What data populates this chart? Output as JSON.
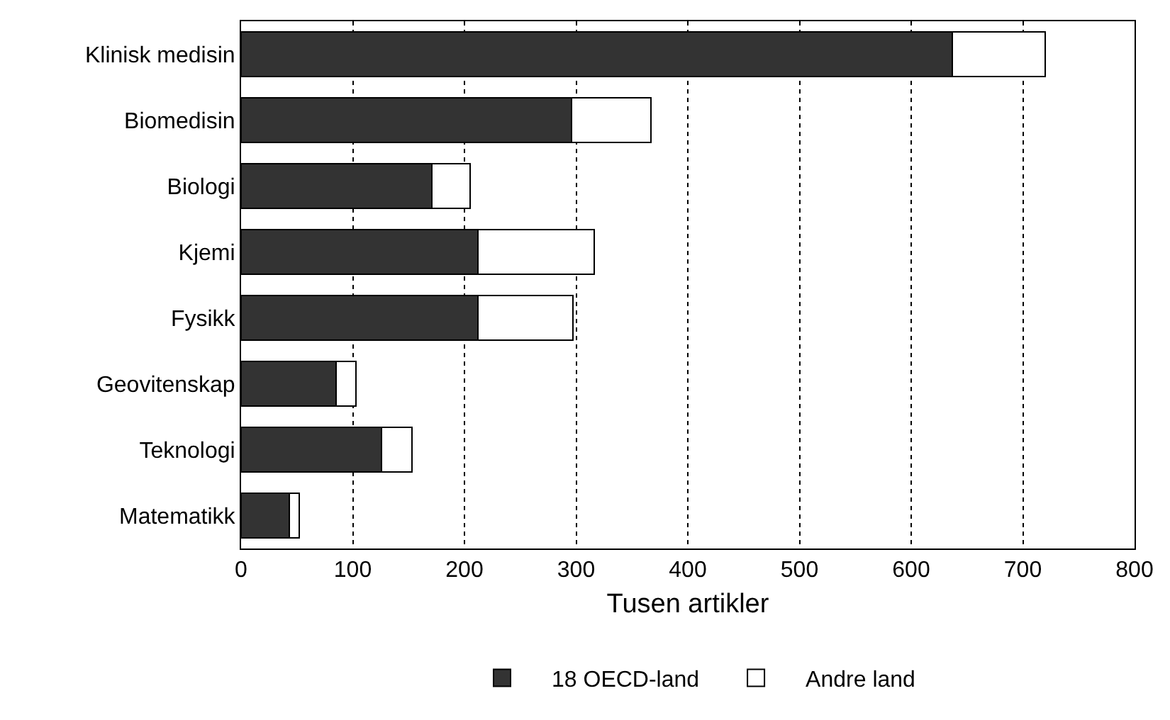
{
  "chart_data": {
    "type": "bar",
    "orientation": "horizontal",
    "stacked": true,
    "categories": [
      "Klinisk medisin",
      "Biomedisin",
      "Biologi",
      "Kjemi",
      "Fysikk",
      "Geovitenskap",
      "Teknologi",
      "Matematikk"
    ],
    "series": [
      {
        "name": "18 OECD-land",
        "color": "#333333",
        "values": [
          637,
          296,
          171,
          212,
          212,
          85,
          126,
          43
        ]
      },
      {
        "name": "Andre land",
        "color": "#ffffff",
        "values": [
          83,
          71,
          34,
          104,
          85,
          18,
          27,
          9
        ]
      }
    ],
    "xlabel": "Tusen artikler",
    "xlim": [
      0,
      800
    ],
    "xticks": [
      0,
      100,
      200,
      300,
      400,
      500,
      600,
      700,
      800
    ],
    "grid": "x",
    "legend": "bottom"
  }
}
